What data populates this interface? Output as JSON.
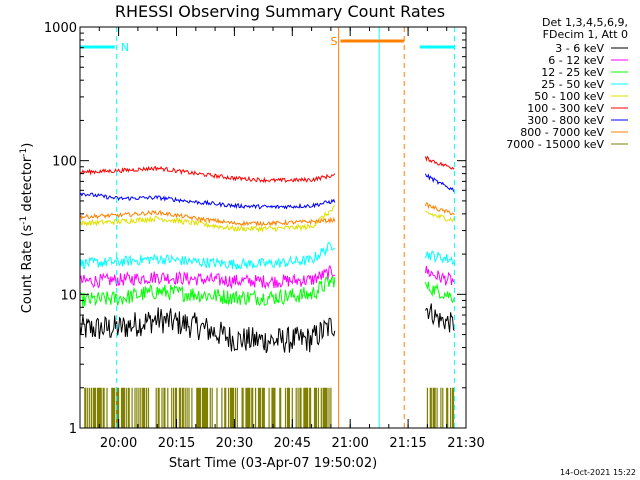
{
  "chart_data": {
    "type": "line",
    "title": "RHESSI Observing Summary Count Rates",
    "xlabel": "Start Time (03-Apr-07 19:50:02)",
    "ylabel_main": "Count Rate (s",
    "ylabel_sup1": "-1",
    "ylabel_mid": " detector",
    "ylabel_sup2": "-1",
    "ylabel_end": ")",
    "y_scale": "log",
    "ylim": [
      1,
      1000
    ],
    "y_ticks": [
      {
        "value": 1,
        "label": "1"
      },
      {
        "value": 10,
        "label": "10"
      },
      {
        "value": 100,
        "label": "100"
      },
      {
        "value": 1000,
        "label": "1000"
      }
    ],
    "xlim_minutes": [
      0,
      100
    ],
    "x_ticks": [
      {
        "minute": 10,
        "label": "20:00"
      },
      {
        "minute": 25,
        "label": "20:15"
      },
      {
        "minute": 40,
        "label": "20:30"
      },
      {
        "minute": 55,
        "label": "20:45"
      },
      {
        "minute": 70,
        "label": "21:00"
      },
      {
        "minute": 85,
        "label": "21:15"
      },
      {
        "minute": 100,
        "label": "21:30"
      }
    ],
    "legend_header": [
      "Det 1,3,4,5,6,9,",
      "FDecim 1, Att 0"
    ],
    "series": [
      {
        "name": "3 - 6 keV",
        "color": "#000000",
        "segments": [
          {
            "x": [
              0,
              10,
              20,
              30,
              40,
              50,
              60,
              66
            ],
            "y": [
              5.5,
              5.6,
              6.5,
              5.8,
              4.6,
              4.5,
              4.6,
              6.0
            ],
            "noise": 0.1
          },
          {
            "x": [
              89.5,
              93,
              97
            ],
            "y": [
              8.0,
              6.5,
              6.0
            ],
            "noise": 0.08
          }
        ]
      },
      {
        "name": "6 - 12 keV",
        "color": "#ff00ff",
        "segments": [
          {
            "x": [
              0,
              10,
              20,
              30,
              40,
              50,
              60,
              66
            ],
            "y": [
              12.5,
              12.8,
              13.5,
              13.0,
              12.6,
              12.5,
              12.8,
              15.0
            ],
            "noise": 0.05
          },
          {
            "x": [
              89.5,
              93,
              97
            ],
            "y": [
              15.0,
              13.5,
              12.5
            ],
            "noise": 0.05
          }
        ]
      },
      {
        "name": "12 - 25 keV",
        "color": "#00ff00",
        "segments": [
          {
            "x": [
              0,
              10,
              20,
              30,
              40,
              50,
              60,
              66
            ],
            "y": [
              9.0,
              9.3,
              10.5,
              10.0,
              9.5,
              9.5,
              10.0,
              13.0
            ],
            "noise": 0.06
          },
          {
            "x": [
              89.5,
              93,
              97
            ],
            "y": [
              11.5,
              10.5,
              9.5
            ],
            "noise": 0.05
          }
        ]
      },
      {
        "name": "25 - 50 keV",
        "color": "#00ffff",
        "segments": [
          {
            "x": [
              0,
              10,
              20,
              30,
              40,
              50,
              60,
              66
            ],
            "y": [
              17.0,
              17.5,
              18.5,
              17.5,
              16.8,
              17.0,
              18.0,
              24.0
            ],
            "noise": 0.04
          },
          {
            "x": [
              89.5,
              93,
              97
            ],
            "y": [
              20.0,
              19.0,
              18.0
            ],
            "noise": 0.04
          }
        ]
      },
      {
        "name": "50 - 100 keV",
        "color": "#e0e000",
        "segments": [
          {
            "x": [
              0,
              10,
              20,
              30,
              40,
              50,
              60,
              66
            ],
            "y": [
              34,
              35,
              37,
              34,
              31,
              31,
              32,
              44
            ],
            "noise": 0.02
          },
          {
            "x": [
              89.5,
              93,
              97
            ],
            "y": [
              41,
              38,
              36
            ],
            "noise": 0.02
          }
        ]
      },
      {
        "name": "100 - 300 keV",
        "color": "#ff0000",
        "segments": [
          {
            "x": [
              0,
              10,
              20,
              30,
              40,
              50,
              60,
              66
            ],
            "y": [
              82,
              84,
              88,
              80,
              74,
              71,
              72,
              78
            ],
            "noise": 0.015
          },
          {
            "x": [
              89.5,
              93,
              97
            ],
            "y": [
              105,
              95,
              88
            ],
            "noise": 0.015
          }
        ]
      },
      {
        "name": "300 - 800 keV",
        "color": "#0000ff",
        "segments": [
          {
            "x": [
              0,
              10,
              20,
              30,
              40,
              50,
              60,
              66
            ],
            "y": [
              57,
              52,
              53,
              49,
              46,
              45,
              46,
              50
            ],
            "noise": 0.015
          },
          {
            "x": [
              89.5,
              93,
              97
            ],
            "y": [
              78,
              68,
              60
            ],
            "noise": 0.015
          }
        ]
      },
      {
        "name": "800 - 7000 keV",
        "color": "#ff8000",
        "segments": [
          {
            "x": [
              0,
              10,
              20,
              30,
              40,
              50,
              60,
              66
            ],
            "y": [
              38,
              39,
              41,
              37,
              34,
              34,
              35,
              36
            ],
            "noise": 0.015
          },
          {
            "x": [
              89.5,
              93,
              97
            ],
            "y": [
              47,
              43,
              40
            ],
            "noise": 0.015
          }
        ]
      },
      {
        "name": "7000 - 15000 keV",
        "color": "#808000",
        "segments": [
          {
            "x": [
              0,
              66
            ],
            "y": [
              1.5,
              1.5
            ],
            "noise": 0,
            "quantized": true
          },
          {
            "x": [
              89.5,
              97
            ],
            "y": [
              1.5,
              1.5
            ],
            "noise": 0,
            "quantized": true
          }
        ]
      }
    ],
    "bars": [
      {
        "label": "N",
        "color": "#00ffff",
        "segments": [
          [
            0,
            9
          ],
          [
            88,
            97
          ]
        ]
      },
      {
        "label": "S",
        "color": "#ff8000",
        "segments": [
          [
            67.5,
            84
          ]
        ]
      }
    ],
    "vertical_lines": [
      {
        "minute": 9.5,
        "color": "#00ffff",
        "style": "dashed"
      },
      {
        "minute": 97,
        "color": "#00ffff",
        "style": "dashed"
      },
      {
        "minute": 77.5,
        "color": "#00ffff",
        "style": "solid"
      },
      {
        "minute": 67,
        "color": "#ff8000",
        "style": "solid"
      },
      {
        "minute": 84,
        "color": "#ff8000",
        "style": "dashed"
      }
    ],
    "data_gap_minutes": [
      67,
      89.5
    ],
    "grid": false,
    "legend_position": "right"
  },
  "footer": {
    "timestamp": "14-Oct-2021 15:22"
  }
}
